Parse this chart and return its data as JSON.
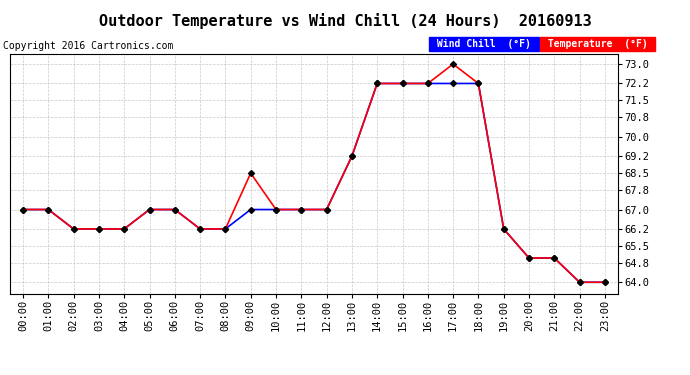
{
  "title": "Outdoor Temperature vs Wind Chill (24 Hours)  20160913",
  "copyright": "Copyright 2016 Cartronics.com",
  "x_labels": [
    "00:00",
    "01:00",
    "02:00",
    "03:00",
    "04:00",
    "05:00",
    "06:00",
    "07:00",
    "08:00",
    "09:00",
    "10:00",
    "11:00",
    "12:00",
    "13:00",
    "14:00",
    "15:00",
    "16:00",
    "17:00",
    "18:00",
    "19:00",
    "20:00",
    "21:00",
    "22:00",
    "23:00"
  ],
  "temperature": [
    67.0,
    67.0,
    66.2,
    66.2,
    66.2,
    67.0,
    67.0,
    66.2,
    66.2,
    68.5,
    67.0,
    67.0,
    67.0,
    69.2,
    72.2,
    72.2,
    72.2,
    73.0,
    72.2,
    66.2,
    65.0,
    65.0,
    64.0,
    64.0
  ],
  "wind_chill": [
    67.0,
    67.0,
    66.2,
    66.2,
    66.2,
    67.0,
    67.0,
    66.2,
    66.2,
    67.0,
    67.0,
    67.0,
    67.0,
    69.2,
    72.2,
    72.2,
    72.2,
    72.2,
    72.2,
    66.2,
    65.0,
    65.0,
    64.0,
    64.0
  ],
  "ylim_min": 63.5,
  "ylim_max": 73.4,
  "yticks": [
    64.0,
    64.8,
    65.5,
    66.2,
    67.0,
    67.8,
    68.5,
    69.2,
    70.0,
    70.8,
    71.5,
    72.2,
    73.0
  ],
  "temp_color": "#ff0000",
  "wind_chill_color": "#0000ff",
  "background_color": "#ffffff",
  "grid_color": "#bbbbbb",
  "legend_wind_chill_bg": "#0000ff",
  "legend_temp_bg": "#ff0000",
  "legend_text_color": "#ffffff",
  "title_fontsize": 11,
  "copyright_fontsize": 7,
  "tick_fontsize": 7.5,
  "marker": "D",
  "marker_size": 3
}
